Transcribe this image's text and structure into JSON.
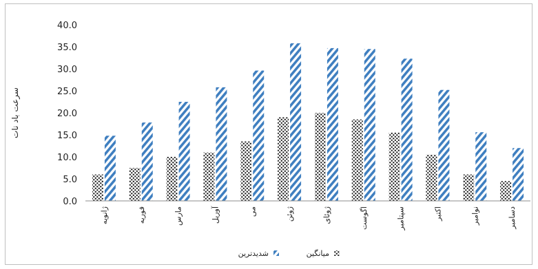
{
  "chart_data": {
    "type": "bar",
    "categories": [
      "ژانویه",
      "فوریه",
      "مارس",
      "آوریل",
      "می",
      "ژوئن",
      "ژوئای",
      "اگوست",
      "سپتامبر",
      "اکتبر",
      "نوامبر",
      "دسامبر"
    ],
    "series": [
      {
        "name": "میانگین",
        "values": [
          6.0,
          7.5,
          10.0,
          11.0,
          13.5,
          19.0,
          20.0,
          18.5,
          15.5,
          10.5,
          6.0,
          4.5
        ]
      },
      {
        "name": "شدیدترین",
        "values": [
          14.8,
          17.8,
          22.5,
          25.8,
          29.6,
          35.8,
          34.7,
          34.5,
          32.3,
          25.2,
          15.6,
          12.0
        ]
      }
    ],
    "ylabel": "سرعت باد نات",
    "xlabel": "",
    "ylim": [
      0,
      40
    ],
    "yticks": [
      "0.0",
      "5.0",
      "10.0",
      "15.0",
      "20.0",
      "25.0",
      "30.0",
      "35.0",
      "40.0"
    ],
    "grid": false,
    "legend": "bottom",
    "colors": {
      "avg_dots": "#1a1a1a",
      "max_stripes": "#3f7fc0"
    }
  }
}
